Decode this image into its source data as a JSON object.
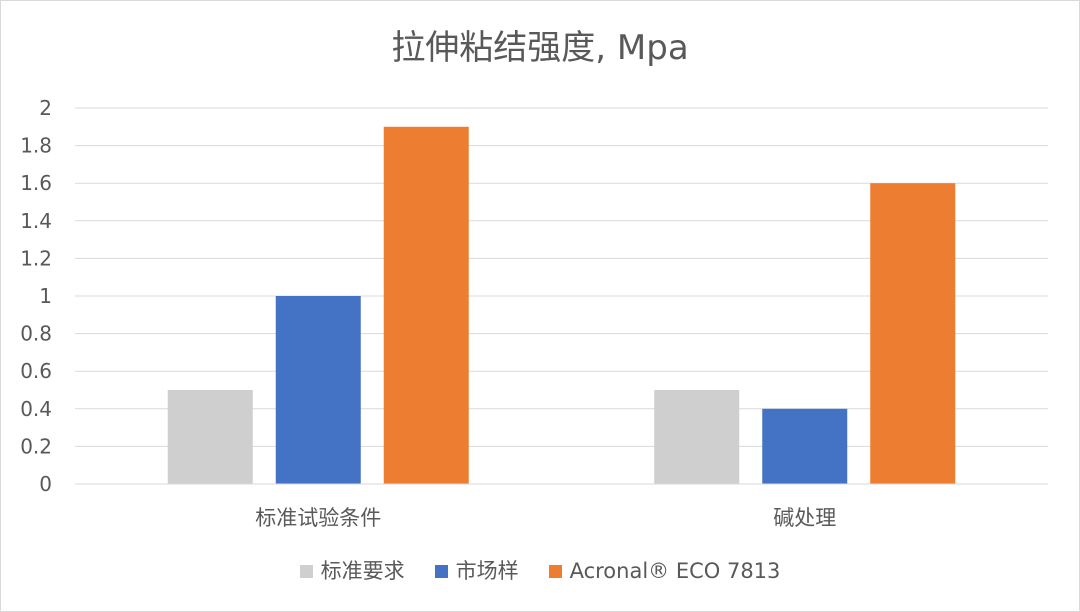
{
  "chart_data": {
    "type": "bar",
    "title": "拉伸粘结强度, Mpa",
    "categories": [
      "标准试验条件",
      "碱处理"
    ],
    "series": [
      {
        "name": "标准要求",
        "values": [
          0.5,
          0.5
        ],
        "color": "#d0cfcf"
      },
      {
        "name": "市场样",
        "values": [
          1.0,
          0.4
        ],
        "color": "#4472c4"
      },
      {
        "name": "Acronal® ECO 7813",
        "values": [
          1.9,
          1.6
        ],
        "color": "#ed7d31"
      }
    ],
    "ylim": [
      0,
      2
    ],
    "yticks": [
      "0",
      "0.2",
      "0.4",
      "0.6",
      "0.8",
      "1",
      "1.2",
      "1.4",
      "1.6",
      "1.8",
      "2"
    ],
    "grid": true,
    "legend_position": "bottom"
  }
}
